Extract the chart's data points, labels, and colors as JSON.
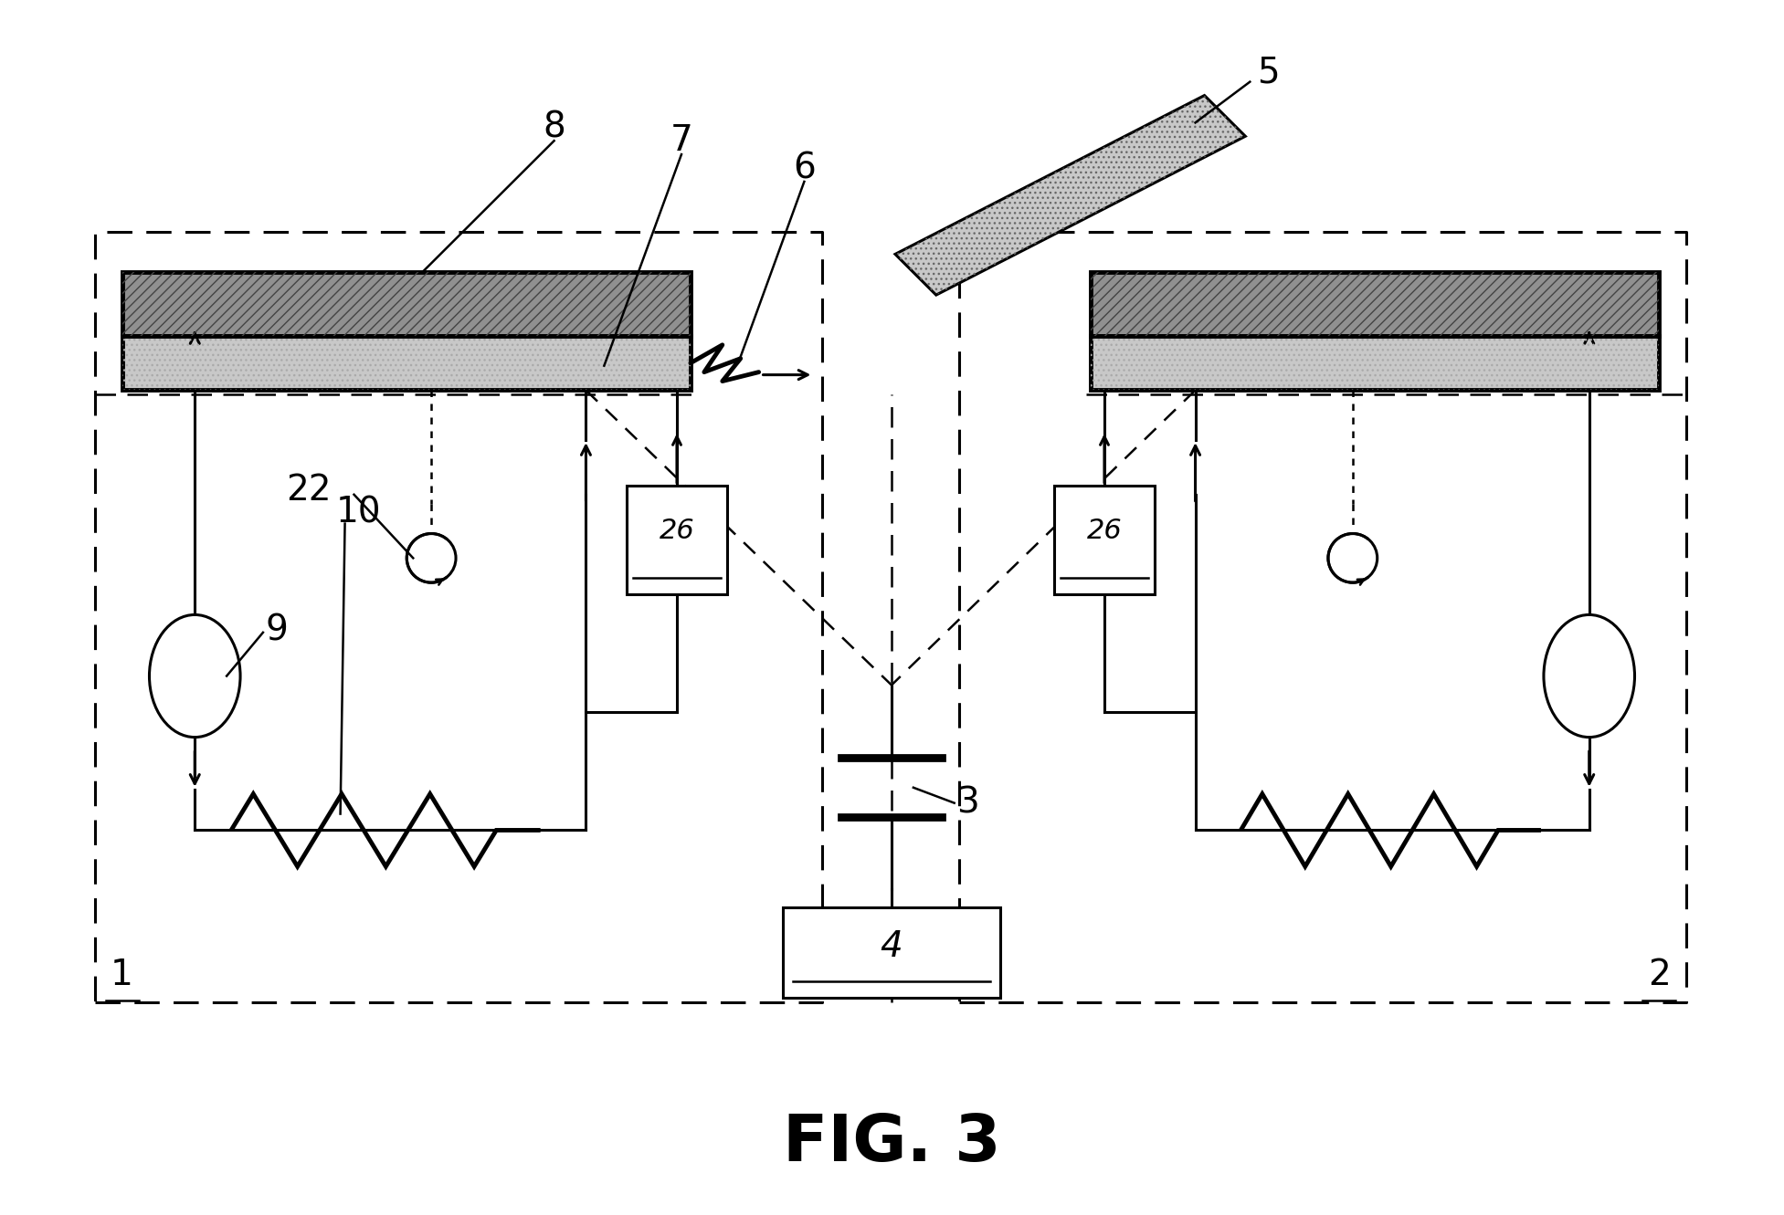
{
  "bg": "#ffffff",
  "black": "#000000",
  "fig_title": "FIG. 3",
  "title_fontsize": 52,
  "label_fontsize": 28,
  "lw": 2.2,
  "lw_thick": 3.5,
  "lw_thin": 1.8,
  "plate_top_color": "#888888",
  "plate_bot_color": "#c8c8c8",
  "laser_color": "#c0c0c0"
}
